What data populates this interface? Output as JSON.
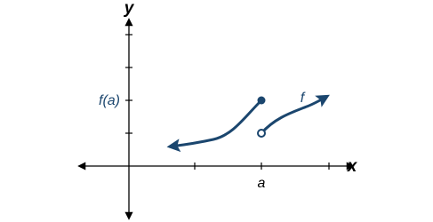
{
  "axes": {
    "x_label": "x",
    "y_label": "y"
  },
  "labels": {
    "function_value": "f(a)",
    "point": "a",
    "function_name": "f"
  }
}
